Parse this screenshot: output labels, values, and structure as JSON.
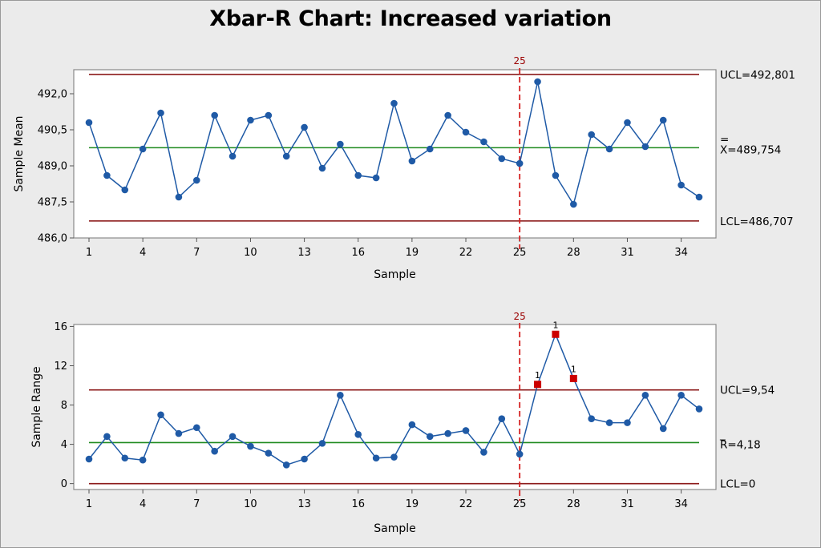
{
  "title": "Xbar-R Chart: Increased variation",
  "colors": {
    "series": "#1f5aa6",
    "center_line": "#1e8a1e",
    "control_limits": "#8c1a1a",
    "reference_line": "#d42020",
    "flagged_point": "#cc0000"
  },
  "chart_data": [
    {
      "type": "line",
      "name": "xbar",
      "xlabel": "Sample",
      "ylabel": "Sample Mean",
      "xlim": [
        1,
        35
      ],
      "ylim": [
        486.0,
        493.0
      ],
      "x_ticks": [
        1,
        4,
        7,
        10,
        13,
        16,
        19,
        22,
        25,
        28,
        31,
        34
      ],
      "y_ticks": [
        486.0,
        487.5,
        489.0,
        490.5,
        492.0
      ],
      "y_tick_labels": [
        "486,0",
        "487,5",
        "489,0",
        "490,5",
        "492,0"
      ],
      "x": [
        1,
        2,
        3,
        4,
        5,
        6,
        7,
        8,
        9,
        10,
        11,
        12,
        13,
        14,
        15,
        16,
        17,
        18,
        19,
        20,
        21,
        22,
        23,
        24,
        25,
        26,
        27,
        28,
        29,
        30,
        31,
        32,
        33,
        34,
        35
      ],
      "values": [
        490.8,
        488.6,
        488.0,
        489.7,
        491.2,
        487.7,
        488.4,
        491.1,
        489.4,
        490.9,
        491.1,
        489.4,
        490.6,
        488.9,
        489.9,
        488.6,
        488.5,
        491.6,
        489.2,
        489.7,
        491.1,
        490.4,
        490.0,
        489.3,
        489.1,
        492.5,
        488.6,
        487.4,
        490.3,
        489.7,
        490.8,
        489.8,
        490.9,
        488.2,
        487.7
      ],
      "lines": {
        "ucl": {
          "value": 492.801,
          "label": "UCL=492,801"
        },
        "center": {
          "value": 489.754,
          "label_bar": "=",
          "label": "X=489,754"
        },
        "lcl": {
          "value": 486.707,
          "label": "LCL=486,707"
        }
      },
      "reference_line": {
        "x": 25,
        "label": "25"
      },
      "flagged": []
    },
    {
      "type": "line",
      "name": "range",
      "xlabel": "Sample",
      "ylabel": "Sample Range",
      "xlim": [
        1,
        35
      ],
      "ylim": [
        -0.6,
        16.2
      ],
      "x_ticks": [
        1,
        4,
        7,
        10,
        13,
        16,
        19,
        22,
        25,
        28,
        31,
        34
      ],
      "y_ticks": [
        0,
        4,
        8,
        12,
        16
      ],
      "y_tick_labels": [
        "0",
        "4",
        "8",
        "12",
        "16"
      ],
      "x": [
        1,
        2,
        3,
        4,
        5,
        6,
        7,
        8,
        9,
        10,
        11,
        12,
        13,
        14,
        15,
        16,
        17,
        18,
        19,
        20,
        21,
        22,
        23,
        24,
        25,
        26,
        27,
        28,
        29,
        30,
        31,
        32,
        33,
        34,
        35
      ],
      "values": [
        2.5,
        4.8,
        2.6,
        2.4,
        7.0,
        5.1,
        5.7,
        3.3,
        4.8,
        3.8,
        3.1,
        1.9,
        2.5,
        4.1,
        9.0,
        5.0,
        2.6,
        2.7,
        6.0,
        4.8,
        5.1,
        5.4,
        3.2,
        6.6,
        3.0,
        10.1,
        15.2,
        10.7,
        6.6,
        6.2,
        6.2,
        9.0,
        5.6,
        9.0,
        7.6
      ],
      "lines": {
        "ucl": {
          "value": 9.54,
          "label": "UCL=9,54"
        },
        "center": {
          "value": 4.18,
          "label_bar": "_",
          "label": "R=4,18"
        },
        "lcl": {
          "value": 0,
          "label": "LCL=0"
        }
      },
      "reference_line": {
        "x": 25,
        "label": "25"
      },
      "flagged": [
        {
          "x": 26,
          "label": "1"
        },
        {
          "x": 27,
          "label": "1"
        },
        {
          "x": 28,
          "label": "1"
        }
      ]
    }
  ]
}
